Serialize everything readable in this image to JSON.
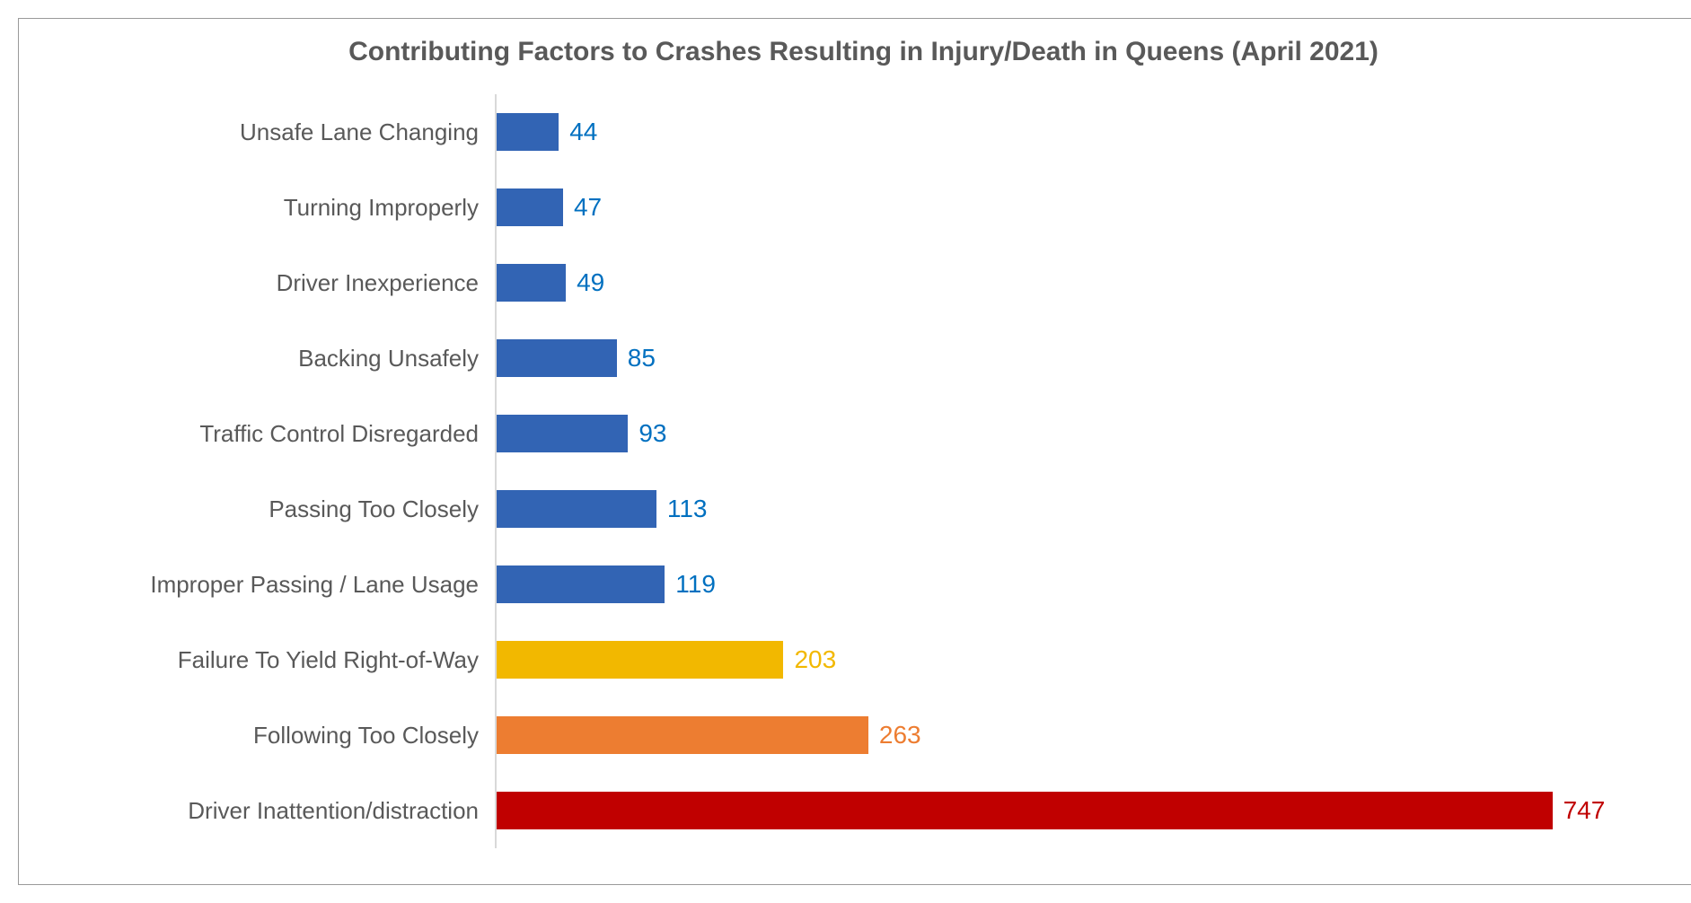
{
  "chart": {
    "type": "bar-horizontal",
    "title": "Contributing Factors to Crashes Resulting in Injury/Death in Queens (April 2021)",
    "title_fontsize": 30,
    "title_color": "#595959",
    "label_fontsize": 26,
    "label_color": "#595959",
    "value_fontsize": 28,
    "background_color": "#ffffff",
    "border_color": "#9a9a9a",
    "axis_color": "#d9d9d9",
    "x_max": 800,
    "bar_height_ratio": 0.5,
    "rows": [
      {
        "label": "Unsafe Lane Changing",
        "value": 44,
        "color": "#3264b4",
        "value_color": "#0070c0"
      },
      {
        "label": "Turning Improperly",
        "value": 47,
        "color": "#3264b4",
        "value_color": "#0070c0"
      },
      {
        "label": "Driver Inexperience",
        "value": 49,
        "color": "#3264b4",
        "value_color": "#0070c0"
      },
      {
        "label": "Backing Unsafely",
        "value": 85,
        "color": "#3264b4",
        "value_color": "#0070c0"
      },
      {
        "label": "Traffic Control Disregarded",
        "value": 93,
        "color": "#3264b4",
        "value_color": "#0070c0"
      },
      {
        "label": "Passing Too Closely",
        "value": 113,
        "color": "#3264b4",
        "value_color": "#0070c0"
      },
      {
        "label": "Improper Passing / Lane Usage",
        "value": 119,
        "color": "#3264b4",
        "value_color": "#0070c0"
      },
      {
        "label": "Failure To Yield Right-of-Way",
        "value": 203,
        "color": "#f2b800",
        "value_color": "#f2b800"
      },
      {
        "label": "Following Too Closely",
        "value": 263,
        "color": "#ed7d31",
        "value_color": "#ed7d31"
      },
      {
        "label": "Driver Inattention/distraction",
        "value": 747,
        "color": "#c00000",
        "value_color": "#c00000"
      }
    ]
  }
}
